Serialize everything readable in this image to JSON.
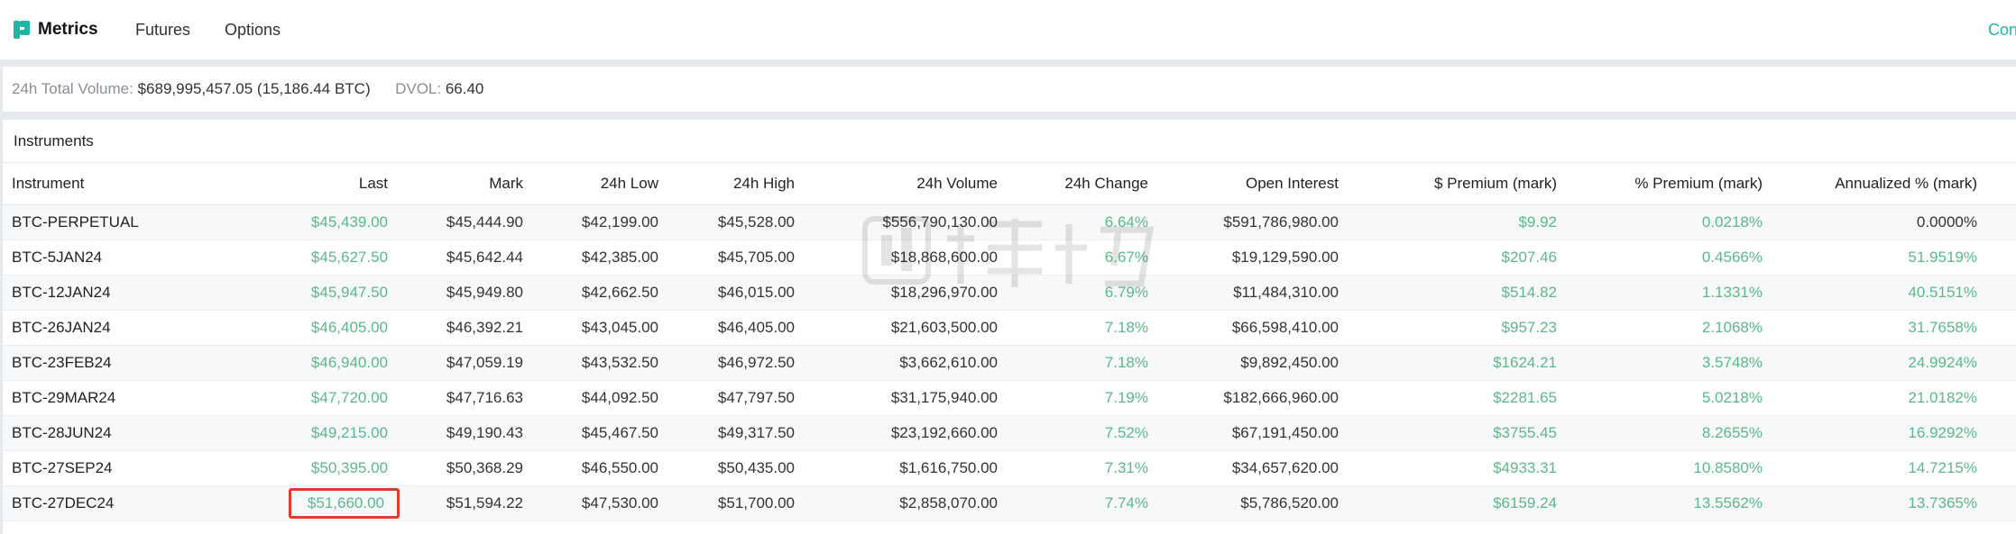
{
  "nav": {
    "brand": "Metrics",
    "links": [
      "Futures",
      "Options"
    ],
    "right_link": "Con"
  },
  "summary": {
    "volume_label": "24h Total Volume:",
    "volume_value": "$689,995,457.05 (15,186.44 BTC)",
    "dvol_label": "DVOL:",
    "dvol_value": "66.40"
  },
  "panel": {
    "title": "Instruments"
  },
  "table": {
    "columns": [
      "Instrument",
      "Last",
      "Mark",
      "24h Low",
      "24h High",
      "24h Volume",
      "24h Change",
      "Open Interest",
      "$ Premium (mark)",
      "% Premium (mark)",
      "Annualized % (mark)"
    ],
    "rows": [
      [
        "BTC-PERPETUAL",
        "$45,439.00",
        "$45,444.90",
        "$42,199.00",
        "$45,528.00",
        "$556,790,130.00",
        "6.64%",
        "$591,786,980.00",
        "$9.92",
        "0.0218%",
        "0.0000%"
      ],
      [
        "BTC-5JAN24",
        "$45,627.50",
        "$45,642.44",
        "$42,385.00",
        "$45,705.00",
        "$18,868,600.00",
        "6.67%",
        "$19,129,590.00",
        "$207.46",
        "0.4566%",
        "51.9519%"
      ],
      [
        "BTC-12JAN24",
        "$45,947.50",
        "$45,949.80",
        "$42,662.50",
        "$46,015.00",
        "$18,296,970.00",
        "6.79%",
        "$11,484,310.00",
        "$514.82",
        "1.1331%",
        "40.5151%"
      ],
      [
        "BTC-26JAN24",
        "$46,405.00",
        "$46,392.21",
        "$43,045.00",
        "$46,405.00",
        "$21,603,500.00",
        "7.18%",
        "$66,598,410.00",
        "$957.23",
        "2.1068%",
        "31.7658%"
      ],
      [
        "BTC-23FEB24",
        "$46,940.00",
        "$47,059.19",
        "$43,532.50",
        "$46,972.50",
        "$3,662,610.00",
        "7.18%",
        "$9,892,450.00",
        "$1624.21",
        "3.5748%",
        "24.9924%"
      ],
      [
        "BTC-29MAR24",
        "$47,720.00",
        "$47,716.63",
        "$44,092.50",
        "$47,797.50",
        "$31,175,940.00",
        "7.19%",
        "$182,666,960.00",
        "$2281.65",
        "5.0218%",
        "21.0182%"
      ],
      [
        "BTC-28JUN24",
        "$49,215.00",
        "$49,190.43",
        "$45,467.50",
        "$49,317.50",
        "$23,192,660.00",
        "7.52%",
        "$67,191,450.00",
        "$3755.45",
        "8.2655%",
        "16.9292%"
      ],
      [
        "BTC-27SEP24",
        "$50,395.00",
        "$50,368.29",
        "$46,550.00",
        "$50,435.00",
        "$1,616,750.00",
        "7.31%",
        "$34,657,620.00",
        "$4933.31",
        "10.8580%",
        "14.7215%"
      ],
      [
        "BTC-27DEC24",
        "$51,660.00",
        "$51,594.22",
        "$47,530.00",
        "$51,700.00",
        "$2,858,070.00",
        "7.74%",
        "$5,786,520.00",
        "$6159.24",
        "13.5562%",
        "13.7365%"
      ]
    ],
    "highlighted_cell": {
      "row": 8,
      "column": 1,
      "border_color": "#e23b2e"
    }
  },
  "colors": {
    "positive": "#5cb88a",
    "accent": "#1fb5a6",
    "page_bg": "#e6e9ee"
  },
  "icons": {
    "brand_logo": "metrics-logo-icon"
  }
}
